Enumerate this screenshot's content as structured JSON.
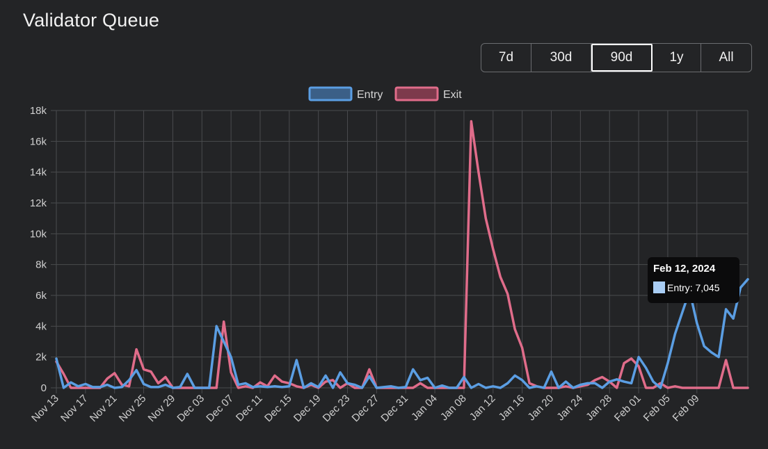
{
  "page": {
    "title": "Validator Queue"
  },
  "range_selector": {
    "options": [
      {
        "label": "7d",
        "active": false
      },
      {
        "label": "30d",
        "active": false
      },
      {
        "label": "90d",
        "active": true
      },
      {
        "label": "1y",
        "active": false
      },
      {
        "label": "All",
        "active": false
      }
    ]
  },
  "tooltip": {
    "title": "Feb 12, 2024",
    "series": "Entry",
    "value": "7,045",
    "color": "#a9cdf4"
  },
  "chart_data": {
    "type": "line",
    "title": "",
    "xlabel": "",
    "ylabel": "",
    "ylim": [
      0,
      18000
    ],
    "y_ticks": [
      0,
      2000,
      4000,
      6000,
      8000,
      10000,
      12000,
      14000,
      16000,
      18000
    ],
    "y_tick_labels": [
      "0",
      "2k",
      "4k",
      "6k",
      "8k",
      "10k",
      "12k",
      "14k",
      "16k",
      "18k"
    ],
    "x_tick_labels": [
      "Nov 13",
      "Nov 17",
      "Nov 21",
      "Nov 25",
      "Nov 29",
      "Dec 03",
      "Dec 07",
      "Dec 11",
      "Dec 15",
      "Dec 19",
      "Dec 23",
      "Dec 27",
      "Dec 31",
      "Jan 04",
      "Jan 08",
      "Jan 12",
      "Jan 16",
      "Jan 20",
      "Jan 24",
      "Jan 28",
      "Feb 01",
      "Feb 05",
      "Feb 09"
    ],
    "x_start": "Nov 13",
    "x_end": "Feb 12",
    "grid": true,
    "legend_position": "top-center",
    "series": [
      {
        "name": "Entry",
        "color": "#5b9ee3",
        "values": [
          1900,
          0,
          350,
          100,
          250,
          50,
          50,
          200,
          0,
          50,
          500,
          1150,
          250,
          50,
          50,
          200,
          0,
          50,
          900,
          0,
          0,
          0,
          4000,
          3000,
          2000,
          200,
          300,
          50,
          100,
          50,
          100,
          50,
          100,
          1800,
          0,
          300,
          50,
          800,
          0,
          1000,
          300,
          200,
          0,
          750,
          0,
          50,
          100,
          0,
          50,
          1200,
          500,
          650,
          0,
          150,
          0,
          0,
          700,
          0,
          250,
          0,
          100,
          0,
          300,
          800,
          500,
          0,
          100,
          0,
          1050,
          0,
          400,
          0,
          200,
          300,
          300,
          0,
          400,
          550,
          400,
          300,
          2000,
          1300,
          400,
          0,
          1600,
          3500,
          4900,
          6300,
          4200,
          2700,
          2300,
          2000,
          5100,
          4500,
          6500,
          7045
        ]
      },
      {
        "name": "Exit",
        "color": "#e06c8a",
        "values": [
          1700,
          900,
          0,
          0,
          0,
          0,
          0,
          600,
          950,
          200,
          100,
          2500,
          1200,
          1050,
          300,
          700,
          0,
          0,
          0,
          0,
          0,
          0,
          0,
          4300,
          1000,
          0,
          100,
          0,
          350,
          100,
          800,
          400,
          300,
          100,
          0,
          200,
          0,
          400,
          500,
          0,
          300,
          0,
          0,
          1200,
          0,
          0,
          0,
          0,
          0,
          0,
          300,
          0,
          0,
          0,
          0,
          0,
          0,
          17300,
          14000,
          11000,
          9000,
          7200,
          6100,
          3800,
          2600,
          300,
          100,
          0,
          0,
          0,
          100,
          0,
          100,
          200,
          500,
          700,
          400,
          0,
          1600,
          1900,
          1400,
          0,
          0,
          300,
          0,
          100,
          0,
          0,
          0,
          0,
          0,
          0,
          1800,
          0,
          0,
          0
        ]
      }
    ]
  }
}
